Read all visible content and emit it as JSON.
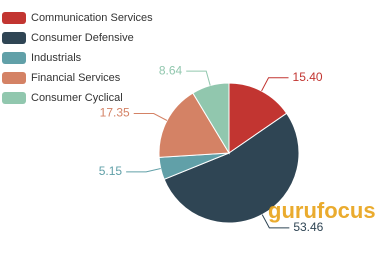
{
  "chart_data": {
    "type": "pie",
    "categories": [
      "Communication Services",
      "Consumer Defensive",
      "Industrials",
      "Financial Services",
      "Consumer Cyclical"
    ],
    "values": [
      15.4,
      53.46,
      5.15,
      17.35,
      8.64
    ],
    "value_labels": [
      "15.40",
      "53.46",
      "5.15",
      "17.35",
      "8.64"
    ],
    "colors": [
      "#c23531",
      "#2f4554",
      "#61a0a8",
      "#d48265",
      "#91c7ae"
    ],
    "legend": "top-left",
    "watermark": "gurufocus"
  }
}
